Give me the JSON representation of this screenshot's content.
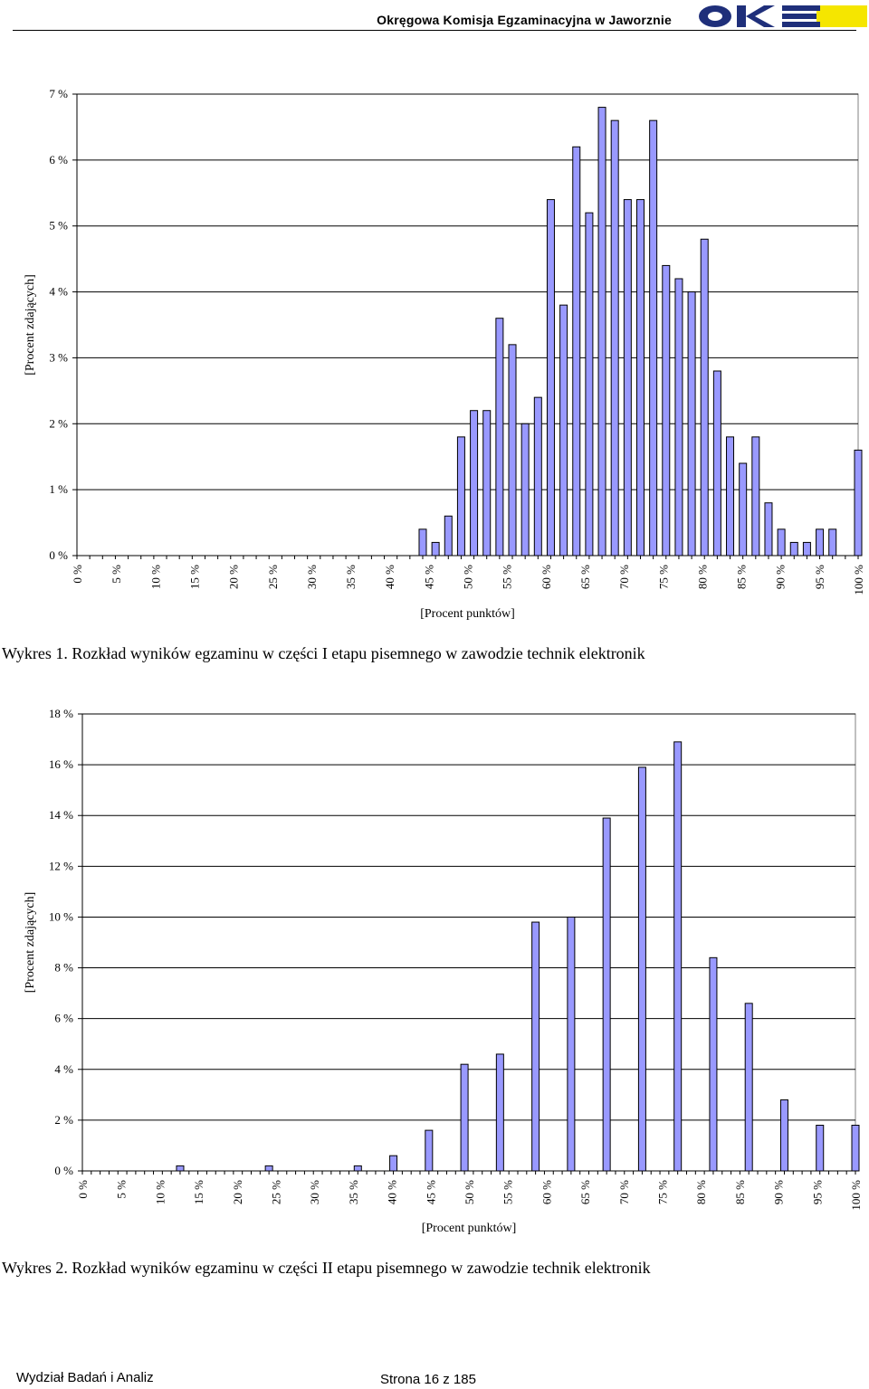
{
  "header": {
    "title": "Okręgowa Komisja Egzaminacyjna w Jaworznie",
    "logo_text": "OKE"
  },
  "colors": {
    "bar_fill": "#9999ff",
    "bar_stroke": "#000000",
    "grid": "#000000",
    "logo_blue": "#1f2f7a",
    "logo_yellow": "#f5e600"
  },
  "chart_data": [
    {
      "type": "bar",
      "caption": "Wykres 1. Rozkład wyników egzaminu w części I etapu pisemnego w zawodzie technik elektronik",
      "xlabel": "[Procent punktów]",
      "ylabel": "[Procent zdających]",
      "ylim": [
        0,
        7
      ],
      "yticks": [
        0,
        1,
        2,
        3,
        4,
        5,
        6,
        7
      ],
      "ytick_labels": [
        "0 %",
        "1 %",
        "2 %",
        "3 %",
        "4 %",
        "5 %",
        "6 %",
        "7 %"
      ],
      "xtick_labels": [
        "0 %",
        "5 %",
        "10 %",
        "15 %",
        "20 %",
        "25 %",
        "30 %",
        "35 %",
        "40 %",
        "45 %",
        "50 %",
        "55 %",
        "60 %",
        "65 %",
        "70 %",
        "75 %",
        "80 %",
        "85 %",
        "90 %",
        "95 %",
        "100 %"
      ],
      "grid": true,
      "values": [
        0,
        0,
        0,
        0,
        0,
        0,
        0,
        0,
        0,
        0,
        0,
        0,
        0,
        0,
        0,
        0,
        0,
        0,
        0,
        0,
        0,
        0,
        0,
        0,
        0,
        0,
        0,
        0.4,
        0.2,
        0.6,
        1.8,
        2.2,
        2.2,
        3.6,
        3.2,
        2.0,
        2.4,
        5.4,
        3.8,
        6.2,
        5.2,
        6.8,
        6.6,
        5.4,
        5.4,
        6.6,
        4.4,
        4.2,
        4.0,
        4.8,
        2.8,
        1.8,
        1.4,
        1.8,
        0.8,
        0.4,
        0.2,
        0.2,
        0.4,
        0.4,
        0,
        1.6
      ]
    },
    {
      "type": "bar",
      "caption": "Wykres 2. Rozkład wyników egzaminu w części II etapu pisemnego w zawodzie technik elektronik",
      "xlabel": "[Procent punktów]",
      "ylabel": "[Procent zdających]",
      "ylim": [
        0,
        18
      ],
      "yticks": [
        0,
        2,
        4,
        6,
        8,
        10,
        12,
        14,
        16,
        18
      ],
      "ytick_labels": [
        "0 %",
        "2 %",
        "4 %",
        "6 %",
        "8 %",
        "10 %",
        "12 %",
        "14 %",
        "16 %",
        "18 %"
      ],
      "xtick_labels": [
        "0 %",
        "5 %",
        "10 %",
        "15 %",
        "20 %",
        "25 %",
        "30 %",
        "35 %",
        "40 %",
        "45 %",
        "50 %",
        "55 %",
        "60 %",
        "65 %",
        "70 %",
        "75 %",
        "80 %",
        "85 %",
        "90 %",
        "95 %",
        "100 %"
      ],
      "grid": true,
      "values": [
        0,
        0,
        0,
        0,
        0,
        0,
        0,
        0,
        0,
        0,
        0,
        0.2,
        0,
        0,
        0,
        0,
        0,
        0,
        0,
        0,
        0,
        0.2,
        0,
        0,
        0,
        0,
        0,
        0,
        0,
        0,
        0,
        0.2,
        0,
        0,
        0,
        0.6,
        0,
        0,
        0,
        1.6,
        0,
        0,
        0,
        4.2,
        0,
        0,
        0,
        4.6,
        0,
        0,
        0,
        9.8,
        0,
        0,
        0,
        10.0,
        0,
        0,
        0,
        13.9,
        0,
        0,
        0,
        15.9,
        0,
        0,
        0,
        16.9,
        0,
        0,
        0,
        8.4,
        0,
        0,
        0,
        6.6,
        0,
        0,
        0,
        2.8,
        0,
        0,
        0,
        1.8,
        0,
        0,
        0,
        1.8
      ]
    }
  ],
  "footer": {
    "left": "Wydział Badań i Analiz",
    "right": "Strona 16 z 185"
  }
}
